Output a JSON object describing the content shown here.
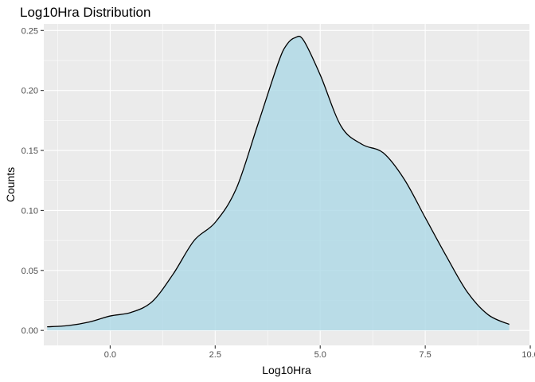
{
  "chart_data": {
    "type": "area",
    "title": "Log10Hra Distribution",
    "xlabel": "Log10Hra",
    "ylabel": "Counts",
    "xlim": [
      -1.58,
      9.98
    ],
    "ylim": [
      -0.0125,
      0.2555
    ],
    "xticks": [
      0.0,
      2.5,
      5.0,
      7.5,
      10.0
    ],
    "xtick_labels": [
      "0.0",
      "2.5",
      "5.0",
      "7.5",
      "10.0"
    ],
    "yticks": [
      0.0,
      0.05,
      0.1,
      0.15,
      0.2,
      0.25
    ],
    "ytick_labels": [
      "0.00",
      "0.05",
      "0.10",
      "0.15",
      "0.20",
      "0.25"
    ],
    "grid": true,
    "fill_color": "#ADD8E6",
    "line_color": "#000000",
    "panel_color": "#EBEBEB",
    "series": [
      {
        "x": [
          -1.5,
          -1.0,
          -0.5,
          0.0,
          0.5,
          1.0,
          1.5,
          2.0,
          2.5,
          3.0,
          3.5,
          4.0,
          4.2,
          4.4,
          4.6,
          5.0,
          5.5,
          6.0,
          6.5,
          7.0,
          7.5,
          8.0,
          8.5,
          9.0,
          9.5
        ],
        "y": [
          0.003,
          0.004,
          0.007,
          0.012,
          0.015,
          0.024,
          0.047,
          0.075,
          0.09,
          0.118,
          0.17,
          0.223,
          0.238,
          0.244,
          0.242,
          0.213,
          0.17,
          0.155,
          0.148,
          0.126,
          0.094,
          0.062,
          0.032,
          0.013,
          0.005
        ]
      }
    ]
  }
}
